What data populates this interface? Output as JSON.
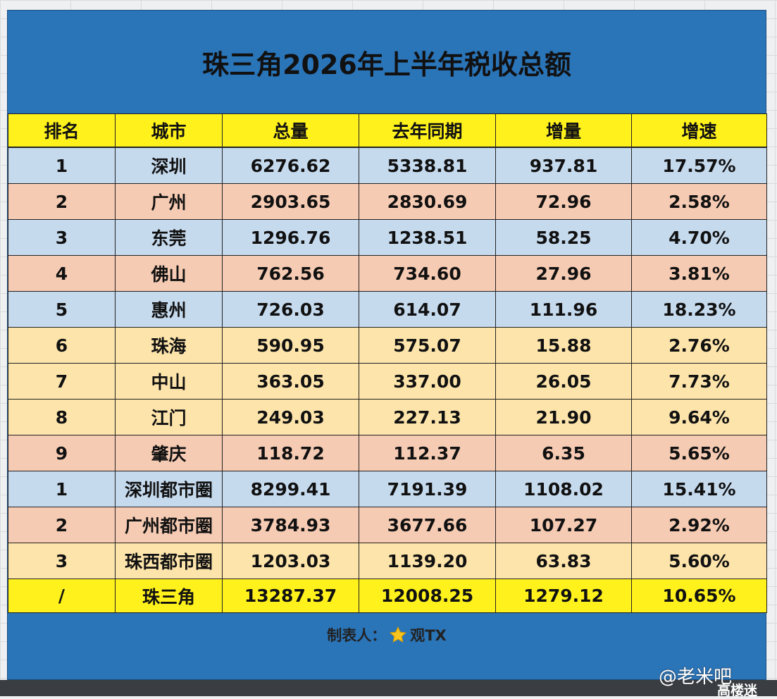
{
  "title": "珠三角2026年上半年税收总额",
  "table": {
    "header": [
      "排名",
      "城市",
      "总量",
      "去年同期",
      "增量",
      "增速"
    ],
    "rows": [
      [
        "1",
        "深圳",
        "6276.62",
        "5338.81",
        "937.81",
        "17.57%"
      ],
      [
        "2",
        "广州",
        "2903.65",
        "2830.69",
        "72.96",
        "2.58%"
      ],
      [
        "3",
        "东莞",
        "1296.76",
        "1238.51",
        "58.25",
        "4.70%"
      ],
      [
        "4",
        "佛山",
        "762.56",
        "734.60",
        "27.96",
        "3.81%"
      ],
      [
        "5",
        "惠州",
        "726.03",
        "614.07",
        "111.96",
        "18.23%"
      ],
      [
        "6",
        "珠海",
        "590.95",
        "575.07",
        "15.88",
        "2.76%"
      ],
      [
        "7",
        "中山",
        "363.05",
        "337.00",
        "26.05",
        "7.73%"
      ],
      [
        "8",
        "江门",
        "249.03",
        "227.13",
        "21.90",
        "9.64%"
      ],
      [
        "9",
        "肇庆",
        "118.72",
        "112.37",
        "6.35",
        "5.65%"
      ],
      [
        "1",
        "深圳都市圈",
        "8299.41",
        "7191.39",
        "1108.02",
        "15.41%"
      ],
      [
        "2",
        "广州都市圈",
        "3784.93",
        "3677.66",
        "107.27",
        "2.92%"
      ],
      [
        "3",
        "珠西都市圈",
        "1203.03",
        "1139.20",
        "63.83",
        "5.60%"
      ],
      [
        "/",
        "珠三角",
        "13287.37",
        "12008.25",
        "1279.12",
        "10.65%"
      ]
    ]
  },
  "footer": {
    "label": "制表人：",
    "name": "观TX"
  },
  "watermark": {
    "handle": "@老米吧",
    "site": "高楼迷"
  }
}
